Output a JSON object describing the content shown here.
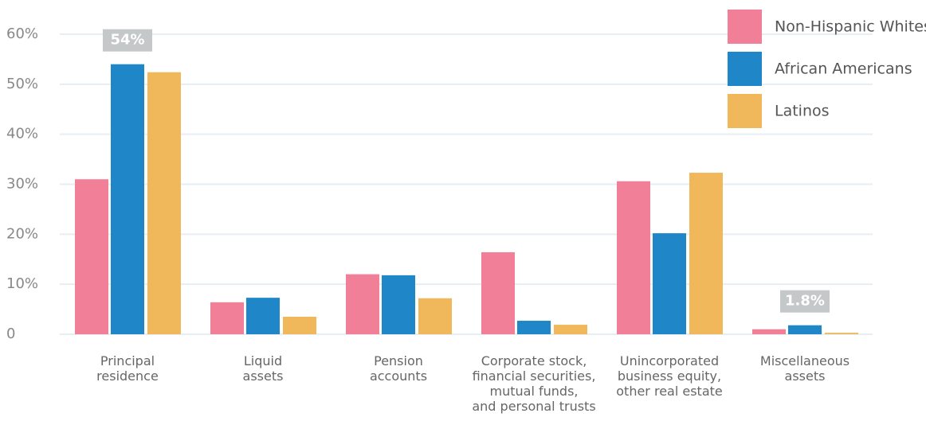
{
  "chart_data": {
    "type": "bar",
    "categories": [
      "Principal\nresidence",
      "Liquid\nassets",
      "Pension\naccounts",
      "Corporate stock,\nfinancial securities,\nmutual funds,\nand personal trusts",
      "Unincorporated\nbusiness equity,\nother real estate",
      "Miscellaneous\nassets"
    ],
    "series": [
      {
        "name": "Non-Hispanic Whites",
        "color": "#f07f97",
        "values": [
          31,
          6.4,
          12,
          16.4,
          30.6,
          1
        ]
      },
      {
        "name": "African Americans",
        "color": "#1f86c8",
        "values": [
          54,
          7.3,
          11.8,
          2.7,
          20.2,
          1.8
        ],
        "value_labels": [
          "54%",
          null,
          null,
          null,
          null,
          "1.8%"
        ]
      },
      {
        "name": "Latinos",
        "color": "#f0b85a",
        "values": [
          52.4,
          3.5,
          7.2,
          1.9,
          32.3,
          0.3
        ]
      }
    ],
    "ylim": [
      0,
      60
    ],
    "yticks": [
      0,
      {
        "value": 10,
        "label": "10%"
      },
      {
        "value": 20,
        "label": "20%"
      },
      {
        "value": 30,
        "label": "30%"
      },
      {
        "value": 40,
        "label": "40%"
      },
      {
        "value": 50,
        "label": "50%"
      },
      {
        "value": 60,
        "label": "60%"
      }
    ],
    "grid": true,
    "legend": "top-right"
  }
}
